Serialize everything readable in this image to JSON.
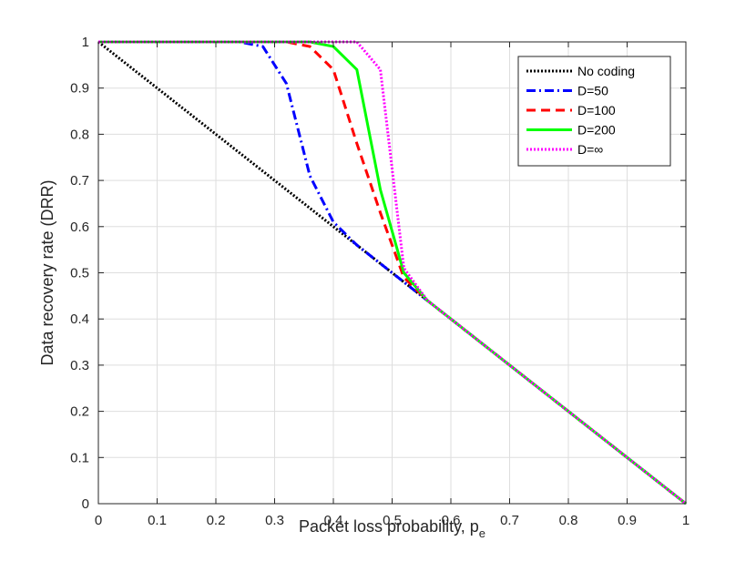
{
  "chart_data": {
    "type": "line",
    "xlabel": "Packet loss probability, p",
    "xlabel_sub": "e",
    "ylabel": "Data recovery rate (DRR)",
    "xlim": [
      0,
      1
    ],
    "ylim": [
      0,
      1
    ],
    "grid": true,
    "legend_position": "top-right",
    "x_ticks": [
      "0",
      "0.1",
      "0.2",
      "0.3",
      "0.4",
      "0.5",
      "0.6",
      "0.7",
      "0.8",
      "0.9",
      "1"
    ],
    "y_ticks": [
      "0",
      "0.1",
      "0.2",
      "0.3",
      "0.4",
      "0.5",
      "0.6",
      "0.7",
      "0.8",
      "0.9",
      "1"
    ],
    "series": [
      {
        "name": "No coding",
        "color": "#000000",
        "style": "dotted",
        "x": [
          0,
          1
        ],
        "y": [
          1,
          0
        ]
      },
      {
        "name": "D=50",
        "color": "#0000ff",
        "style": "dashdot",
        "x": [
          0,
          0.24,
          0.28,
          0.32,
          0.36,
          0.4,
          0.44,
          0.48,
          0.52,
          0.56,
          0.6,
          0.7,
          0.8,
          0.9,
          1.0
        ],
        "y": [
          1,
          1,
          0.99,
          0.91,
          0.71,
          0.61,
          0.56,
          0.52,
          0.48,
          0.44,
          0.4,
          0.3,
          0.2,
          0.1,
          0.0
        ]
      },
      {
        "name": "D=100",
        "color": "#ff0000",
        "style": "dashed",
        "x": [
          0,
          0.32,
          0.36,
          0.4,
          0.44,
          0.48,
          0.52,
          0.56,
          0.6,
          0.7,
          0.8,
          0.9,
          1.0
        ],
        "y": [
          1,
          1,
          0.99,
          0.94,
          0.78,
          0.63,
          0.49,
          0.44,
          0.4,
          0.3,
          0.2,
          0.1,
          0.0
        ]
      },
      {
        "name": "D=200",
        "color": "#00ff00",
        "style": "solid",
        "x": [
          0,
          0.36,
          0.4,
          0.44,
          0.48,
          0.52,
          0.56,
          0.6,
          0.7,
          0.8,
          0.9,
          1.0
        ],
        "y": [
          1,
          1,
          0.99,
          0.94,
          0.68,
          0.5,
          0.44,
          0.4,
          0.3,
          0.2,
          0.1,
          0.0
        ]
      },
      {
        "name": "D=∞",
        "color": "#ff00ff",
        "style": "dotted",
        "x": [
          0,
          0.4,
          0.44,
          0.48,
          0.52,
          0.56,
          0.6,
          0.7,
          0.8,
          0.9,
          1.0
        ],
        "y": [
          1,
          1,
          1,
          0.94,
          0.51,
          0.44,
          0.4,
          0.3,
          0.2,
          0.1,
          0.0
        ]
      }
    ]
  }
}
